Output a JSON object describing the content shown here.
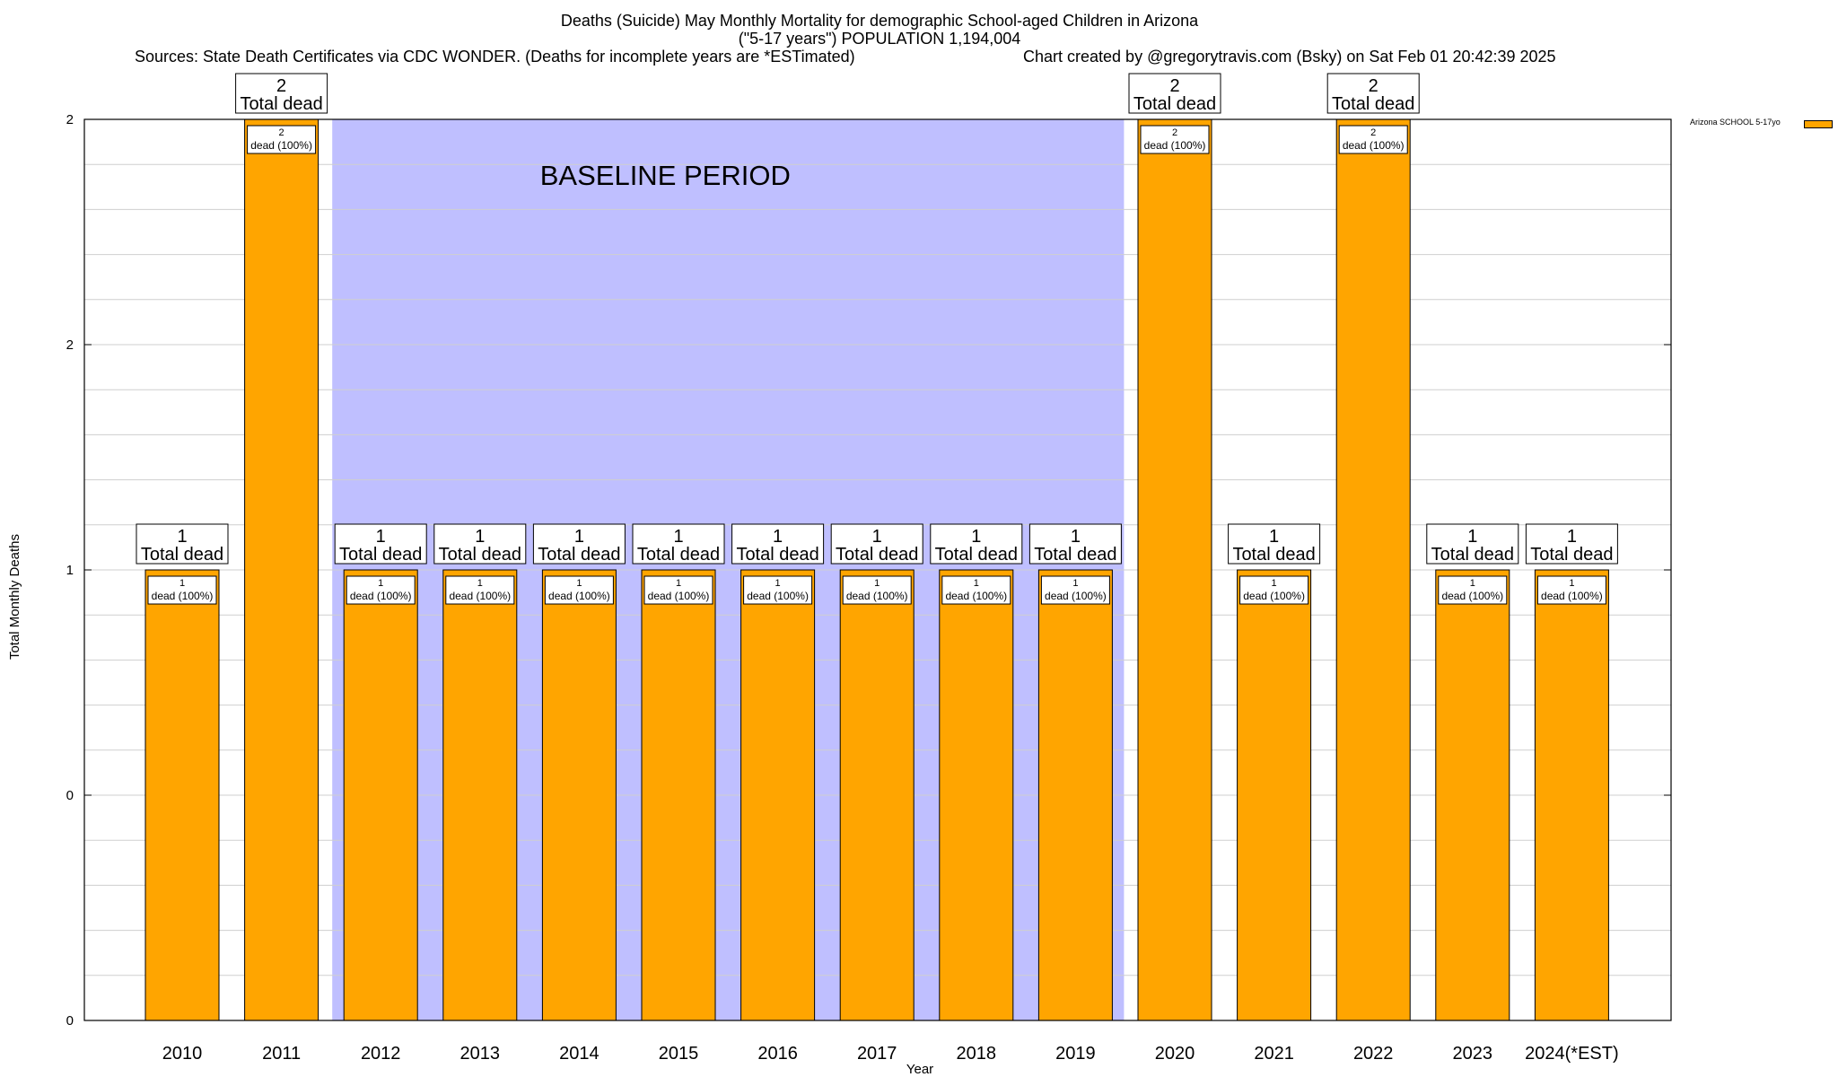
{
  "header": {
    "title_line1": "Deaths (Suicide) May Monthly Mortality for demographic School-aged Children in Arizona",
    "title_line2": "(\"5-17 years\") POPULATION 1,194,004",
    "sources": "Sources: State Death Certificates via CDC WONDER. (Deaths for incomplete years are *ESTimated)",
    "credit": "Chart created by @gregorytravis.com (Bsky) on Sat Feb 01 20:42:39 2025"
  },
  "chart_data": {
    "type": "bar",
    "title": "Deaths (Suicide) May Monthly Mortality for demographic School-aged Children in Arizona",
    "xlabel": "Year",
    "ylabel": "Total Monthly Deaths",
    "ylim": [
      0,
      2
    ],
    "y_tick_labels": [
      "0",
      "0",
      "1",
      "2",
      "2"
    ],
    "categories": [
      "2010",
      "2011",
      "2012",
      "2013",
      "2014",
      "2015",
      "2016",
      "2017",
      "2018",
      "2019",
      "2020",
      "2021",
      "2022",
      "2023",
      "2024(*EST)"
    ],
    "series": [
      {
        "name": "Arizona SCHOOL 5-17yo",
        "color": "#FFA500",
        "values": [
          1,
          2,
          1,
          1,
          1,
          1,
          1,
          1,
          1,
          1,
          2,
          1,
          2,
          1,
          1
        ]
      }
    ],
    "total_labels": [
      "1\nTotal dead",
      "2\nTotal dead",
      "1\nTotal dead",
      "1\nTotal dead",
      "1\nTotal dead",
      "1\nTotal dead",
      "1\nTotal dead",
      "1\nTotal dead",
      "1\nTotal dead",
      "1\nTotal dead",
      "2\nTotal dead",
      "1\nTotal dead",
      "2\nTotal dead",
      "1\nTotal dead",
      "1\nTotal dead"
    ],
    "segment_labels": [
      "1\ndead (100%)",
      "2\ndead (100%)",
      "1\ndead (100%)",
      "1\ndead (100%)",
      "1\ndead (100%)",
      "1\ndead (100%)",
      "1\ndead (100%)",
      "1\ndead (100%)",
      "1\ndead (100%)",
      "1\ndead (100%)",
      "2\ndead (100%)",
      "1\ndead (100%)",
      "2\ndead (100%)",
      "1\ndead (100%)",
      "1\ndead (100%)"
    ],
    "baseline": {
      "label": "BASELINE PERIOD",
      "from": "2012",
      "to": "2019",
      "color": "#BFBFFF"
    },
    "legend": {
      "position": "top-right outside",
      "entries": [
        "Arizona SCHOOL 5-17yo"
      ]
    },
    "grid": true
  }
}
